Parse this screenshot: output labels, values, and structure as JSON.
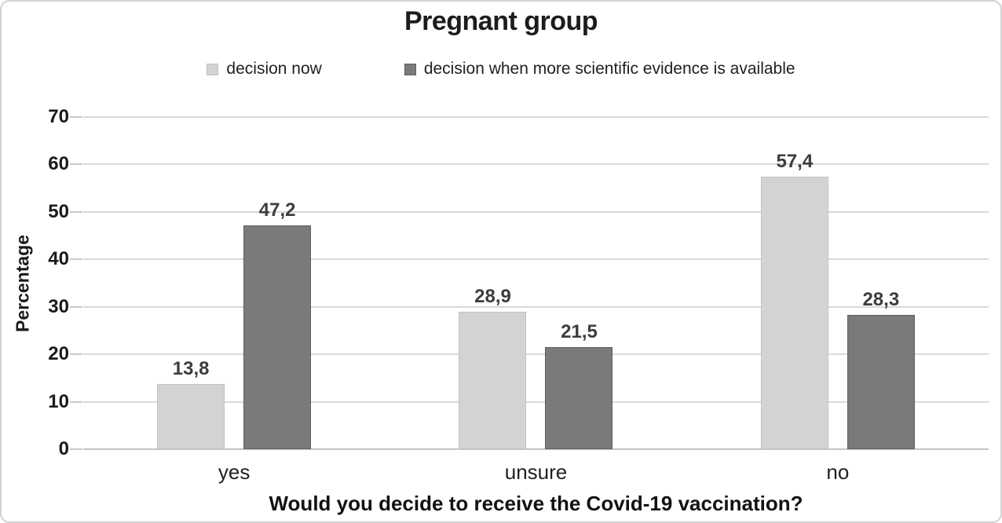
{
  "chart_data": {
    "type": "bar",
    "title": "Pregnant group",
    "categories": [
      "yes",
      "unsure",
      "no"
    ],
    "series": [
      {
        "name": "decision now",
        "color": "#d3d3d3",
        "border_color": "#c2c2c2",
        "values": [
          13.8,
          28.9,
          57.4
        ],
        "labels": [
          "13,8",
          "28,9",
          "57,4"
        ]
      },
      {
        "name": "decision when more scientific evidence is available",
        "color": "#7a7a7a",
        "border_color": "#606060",
        "values": [
          47.2,
          21.5,
          28.3
        ],
        "labels": [
          "47,2",
          "21,5",
          "28,3"
        ]
      }
    ],
    "xlabel": "Would you decide to receive the Covid-19 vaccination?",
    "ylabel": "Percentage",
    "ylim": [
      0,
      70
    ],
    "yticks": [
      0,
      10,
      20,
      30,
      40,
      50,
      60,
      70
    ],
    "grid": "horizontal",
    "legend_position": "top",
    "gridline_color": "#d9d9d9",
    "baseline_color": "#c4c4c4",
    "tick_color": "#c9c9c9"
  }
}
